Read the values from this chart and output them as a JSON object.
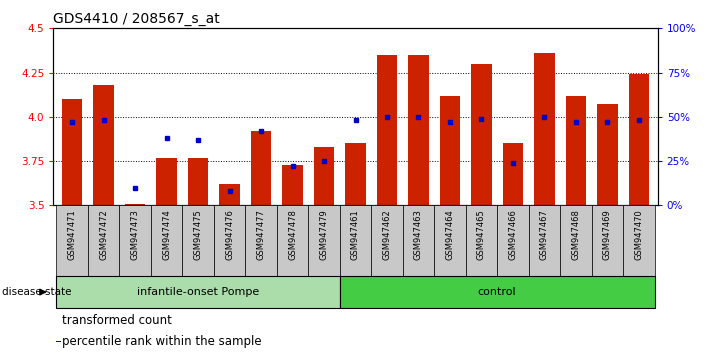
{
  "title": "GDS4410 / 208567_s_at",
  "samples": [
    "GSM947471",
    "GSM947472",
    "GSM947473",
    "GSM947474",
    "GSM947475",
    "GSM947476",
    "GSM947477",
    "GSM947478",
    "GSM947479",
    "GSM947461",
    "GSM947462",
    "GSM947463",
    "GSM947464",
    "GSM947465",
    "GSM947466",
    "GSM947467",
    "GSM947468",
    "GSM947469",
    "GSM947470"
  ],
  "transformed_count": [
    4.1,
    4.18,
    3.51,
    3.77,
    3.77,
    3.62,
    3.92,
    3.73,
    3.83,
    3.85,
    4.35,
    4.35,
    4.12,
    4.3,
    3.85,
    4.36,
    4.12,
    4.07,
    4.24
  ],
  "percentile_rank": [
    47,
    48,
    10,
    38,
    37,
    8,
    42,
    22,
    25,
    48,
    50,
    50,
    47,
    49,
    24,
    50,
    47,
    47,
    48
  ],
  "groups": [
    {
      "label": "infantile-onset Pompe",
      "start": 0,
      "end": 9,
      "color": "#aaddaa"
    },
    {
      "label": "control",
      "start": 9,
      "end": 19,
      "color": "#44cc44"
    }
  ],
  "ylim_left": [
    3.5,
    4.5
  ],
  "ylim_right": [
    0,
    100
  ],
  "yticks_left": [
    3.5,
    3.75,
    4.0,
    4.25,
    4.5
  ],
  "yticks_right": [
    0,
    25,
    50,
    75,
    100
  ],
  "ytick_labels_right": [
    "0%",
    "25%",
    "50%",
    "75%",
    "100%"
  ],
  "bar_color": "#CC2200",
  "marker_color": "#0000CC",
  "bar_width": 0.65,
  "bar_bottom": 3.5,
  "sample_area_color": "#C8C8C8",
  "legend_items": [
    {
      "label": "transformed count",
      "color": "#CC2200"
    },
    {
      "label": "percentile rank within the sample",
      "color": "#0000CC"
    }
  ],
  "title_fontsize": 10,
  "tick_fontsize": 7.5,
  "label_fontsize": 8.5,
  "sample_fontsize": 6,
  "group_fontsize": 8
}
